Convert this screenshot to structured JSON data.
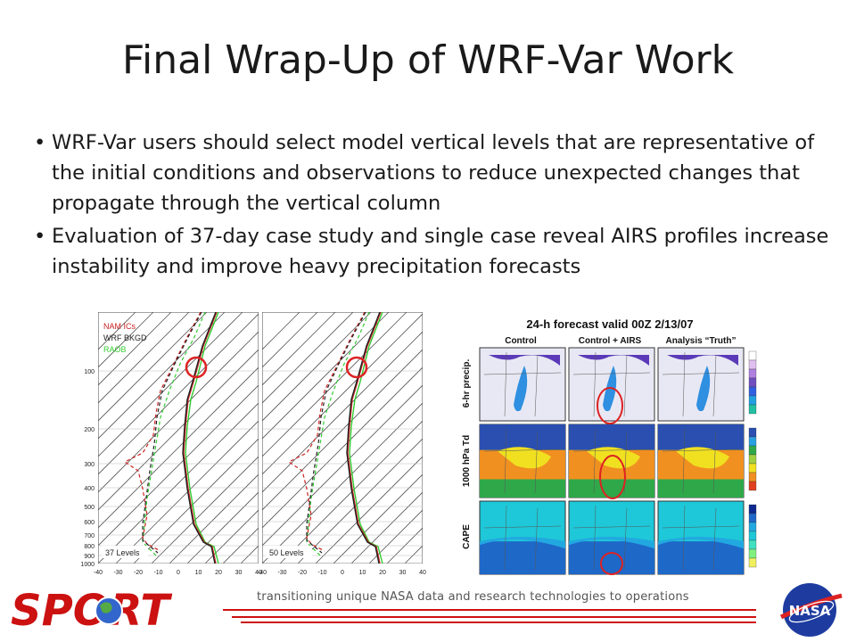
{
  "slide": {
    "title": "Final Wrap-Up of WRF-Var Work",
    "bullets": [
      "WRF-Var users should select model vertical levels that are representative of the initial conditions and observations to reduce unexpected changes that propagate through the vertical column",
      "Evaluation of 37-day case study and single case reveal AIRS profiles increase instability and improve heavy precipitation forecasts"
    ]
  },
  "skewt": {
    "legend": {
      "nam": "NAM ICs",
      "wrf": "WRF BKGD",
      "raob": "RAOB"
    },
    "panel_labels": [
      "37 Levels",
      "50 Levels"
    ],
    "pressure_ticks": [
      "100",
      "200",
      "300",
      "400",
      "500",
      "600",
      "700",
      "800",
      "900",
      "1000"
    ],
    "temp_ticks": [
      "-40",
      "-30",
      "-20",
      "-10",
      "0",
      "10",
      "20",
      "30",
      "40"
    ],
    "colors": {
      "nam": "#cc2222",
      "wrf": "#222222",
      "raob": "#33cc33",
      "highlight": "#dd2222"
    }
  },
  "maps": {
    "title": "24-h forecast valid 00Z 2/13/07",
    "columns": [
      "Control",
      "Control + AIRS",
      "Analysis “Truth”"
    ],
    "rows": [
      "6-hr precip.",
      "1000 hPa Td",
      "CAPE"
    ]
  },
  "footer": {
    "logo": "SPORT",
    "tagline": "transitioning unique NASA data and research technologies to operations",
    "nasa": "NASA",
    "accent_color": "#cc1111"
  }
}
